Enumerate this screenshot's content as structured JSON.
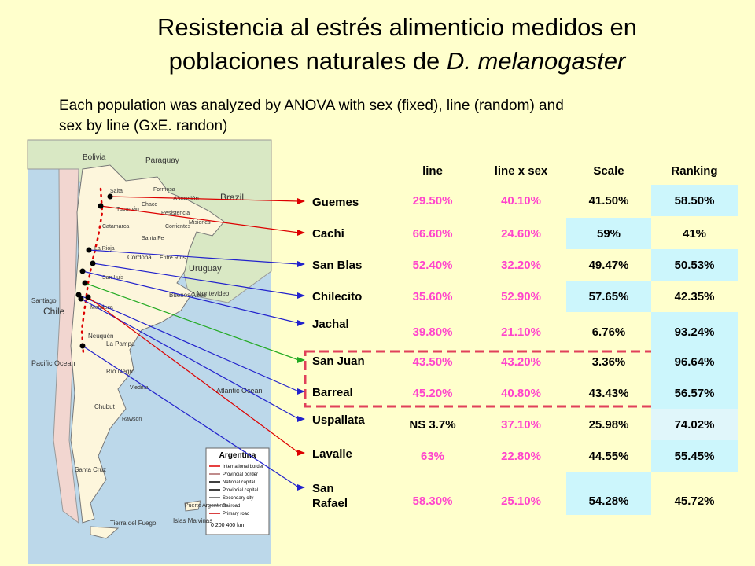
{
  "title": {
    "line1": "Resistencia al estrés  alimenticio medidos en",
    "line2": "poblaciones naturales de",
    "line2_italic": "D. melanogaster"
  },
  "subtitle": [
    "Each population was analyzed by ANOVA with sex (fixed), line (random) and",
    "sex by line (GxE. randon)"
  ],
  "table": {
    "headers": [
      "line",
      "line x sex",
      "Scale",
      "Ranking"
    ],
    "rows": [
      {
        "population": "Guemes",
        "cells": [
          "29.50%",
          "40.10%",
          "41.50%",
          "58.50%"
        ]
      },
      {
        "population": "Cachi",
        "cells": [
          "66.60%",
          "24.60%",
          "59%",
          "41%"
        ]
      },
      {
        "population": "San Blas",
        "cells": [
          "52.40%",
          "32.20%",
          "49.47%",
          "50.53%"
        ]
      },
      {
        "population": "Chilecito",
        "cells": [
          "35.60%",
          "52.90%",
          "57.65%",
          "42.35%"
        ]
      },
      {
        "population": "Jachal",
        "cells": [
          "39.80%",
          "21.10%",
          "6.76%",
          "93.24%"
        ]
      },
      {
        "population": "San Juan",
        "cells": [
          "43.50%",
          "43.20%",
          "3.36%",
          "96.64%"
        ]
      },
      {
        "population": "Barreal",
        "cells": [
          "45.20%",
          "40.80%",
          "43.43%",
          "56.57%"
        ]
      },
      {
        "population": "Uspallata",
        "cells": [
          "NS 3.7%",
          "37.10%",
          "25.98%",
          "74.02%"
        ]
      },
      {
        "population": "Lavalle",
        "cells": [
          "63%",
          "22.80%",
          "44.55%",
          "55.45%"
        ]
      },
      {
        "population": "San Rafael",
        "cells": [
          "58.30%",
          "25.10%",
          "54.28%",
          "45.72%"
        ]
      }
    ]
  },
  "map": {
    "labels": [
      "Bolivia",
      "Paraguay",
      "Brazil",
      "Chile",
      "Uruguay",
      "Santiago",
      "Montevideo",
      "Buenos Aires",
      "Asunción",
      "Pacific Ocean",
      "Atlantic Ocean",
      "Mendoza",
      "Córdoba",
      "Chubut",
      "Santa Cruz",
      "Neuquén",
      "La Pampa",
      "Río Negro",
      "Tierra del Fuego",
      "Islas Malvinas",
      "Puerto Argentino",
      "Salta",
      "Tucumán",
      "Formosa",
      "Chaco",
      "Misiones",
      "Corrientes",
      "Entre Ríos",
      "Santa Fe",
      "San Luis",
      "La Rioja",
      "Catamarca",
      "Resistencia",
      "Viedma",
      "Rawson"
    ],
    "legend": {
      "title": "Argentina",
      "items": [
        "International border",
        "Provincial border",
        "National capital",
        "Provincial capital",
        "Secondary city",
        "Railroad",
        "Primary road"
      ]
    },
    "scale": "0 200 400 km"
  }
}
